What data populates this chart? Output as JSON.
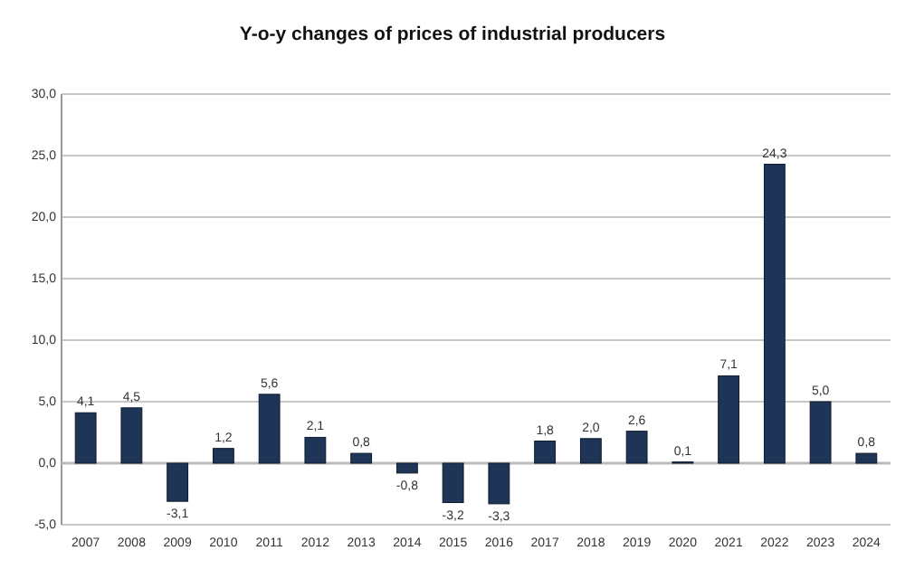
{
  "chart_data": {
    "type": "bar",
    "title": "Y-o-y changes of prices of industrial producers",
    "categories": [
      "2007",
      "2008",
      "2009",
      "2010",
      "2011",
      "2012",
      "2013",
      "2014",
      "2015",
      "2016",
      "2017",
      "2018",
      "2019",
      "2020",
      "2021",
      "2022",
      "2023",
      "2024"
    ],
    "values": [
      4.1,
      4.5,
      -3.1,
      1.2,
      5.6,
      2.1,
      0.8,
      -0.8,
      -3.2,
      -3.3,
      1.8,
      2.0,
      2.6,
      0.1,
      7.1,
      24.3,
      5.0,
      0.8
    ],
    "value_labels": [
      "4,1",
      "4,5",
      "-3,1",
      "1,2",
      "5,6",
      "2,1",
      "0,8",
      "-0,8",
      "-3,2",
      "-3,3",
      "1,8",
      "2,0",
      "2,6",
      "0,1",
      "7,1",
      "24,3",
      "5,0",
      "0,8"
    ],
    "color": "#1f3558",
    "ylim": [
      -5,
      30
    ],
    "yticks": [
      {
        "value": -5,
        "label": "-5,0"
      },
      {
        "value": 0,
        "label": "0,0"
      },
      {
        "value": 5,
        "label": "5,0"
      },
      {
        "value": 10,
        "label": "10,0"
      },
      {
        "value": 15,
        "label": "15,0"
      },
      {
        "value": 20,
        "label": "20,0"
      },
      {
        "value": 25,
        "label": "25,0"
      },
      {
        "value": 30,
        "label": "30,0"
      }
    ],
    "grid": "y"
  }
}
